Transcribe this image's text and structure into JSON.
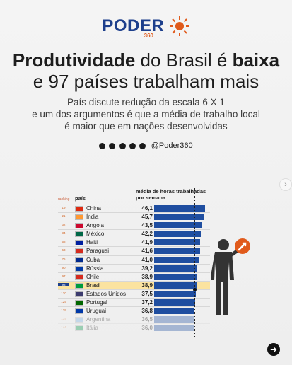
{
  "brand": {
    "name": "PODER",
    "suffix": "360"
  },
  "headline": {
    "bold1": "Produtividade",
    "mid": " do Brasil é ",
    "bold2": "baixa",
    "line2": "e 97 países trabalham mais"
  },
  "subtitle": [
    "País discute redução da escala 6 X 1",
    "e um dos argumentos é que a média de trabalho local",
    "é maior que em nações desenvolvidas"
  ],
  "social": {
    "icons": [
      "x-icon",
      "instagram-icon",
      "youtube-icon",
      "facebook-icon",
      "tiktok-icon"
    ],
    "handle": "@Poder360"
  },
  "table": {
    "header_rank": "ranking",
    "header_country": "país",
    "header_value": "média de horas trabalhadas por semana",
    "rows": [
      {
        "rank": "19",
        "country": "China",
        "value": 46.1,
        "label": "46,1",
        "flag": "#de2910"
      },
      {
        "rank": "21",
        "country": "Índia",
        "value": 45.7,
        "label": "45,7",
        "flag": "#ff9933"
      },
      {
        "rank": "32",
        "country": "Angola",
        "value": 43.5,
        "label": "43,5",
        "flag": "#cc092f"
      },
      {
        "rank": "34",
        "country": "México",
        "value": 42.2,
        "label": "42,2",
        "flag": "#006847"
      },
      {
        "rank": "58",
        "country": "Haiti",
        "value": 41.9,
        "label": "41,9",
        "flag": "#00209f"
      },
      {
        "rank": "63",
        "country": "Paraguai",
        "value": 41.6,
        "label": "41,6",
        "flag": "#d52b1e"
      },
      {
        "rank": "76",
        "country": "Cuba",
        "value": 41.0,
        "label": "41,0",
        "flag": "#002a8f"
      },
      {
        "rank": "90",
        "country": "Rússia",
        "value": 39.2,
        "label": "39,2",
        "flag": "#0039a6"
      },
      {
        "rank": "97",
        "country": "Chile",
        "value": 38.9,
        "label": "38,9",
        "flag": "#d52b1e"
      },
      {
        "rank": "98",
        "country": "Brasil",
        "value": 38.9,
        "label": "38,9",
        "flag": "#009c3b",
        "highlight": true
      },
      {
        "rank": "120",
        "country": "Estados Unidos",
        "value": 37.5,
        "label": "37,5",
        "flag": "#3c3b6e"
      },
      {
        "rank": "125",
        "country": "Portugal",
        "value": 37.2,
        "label": "37,2",
        "flag": "#006600"
      },
      {
        "rank": "129",
        "country": "Uruguai",
        "value": 36.8,
        "label": "36,8",
        "flag": "#0038a8"
      },
      {
        "rank": "134",
        "country": "Argentina",
        "value": 36.5,
        "label": "36,5",
        "flag": "#74acdf",
        "fade": true
      },
      {
        "rank": "144",
        "country": "Itália",
        "value": 36.0,
        "label": "36,0",
        "flag": "#009246",
        "fade": true
      }
    ]
  },
  "colors": {
    "bar": "#1f4ea0",
    "highlight": "#fbe3a0",
    "brand": "#1d3f8c",
    "accent": "#e05a1b"
  }
}
